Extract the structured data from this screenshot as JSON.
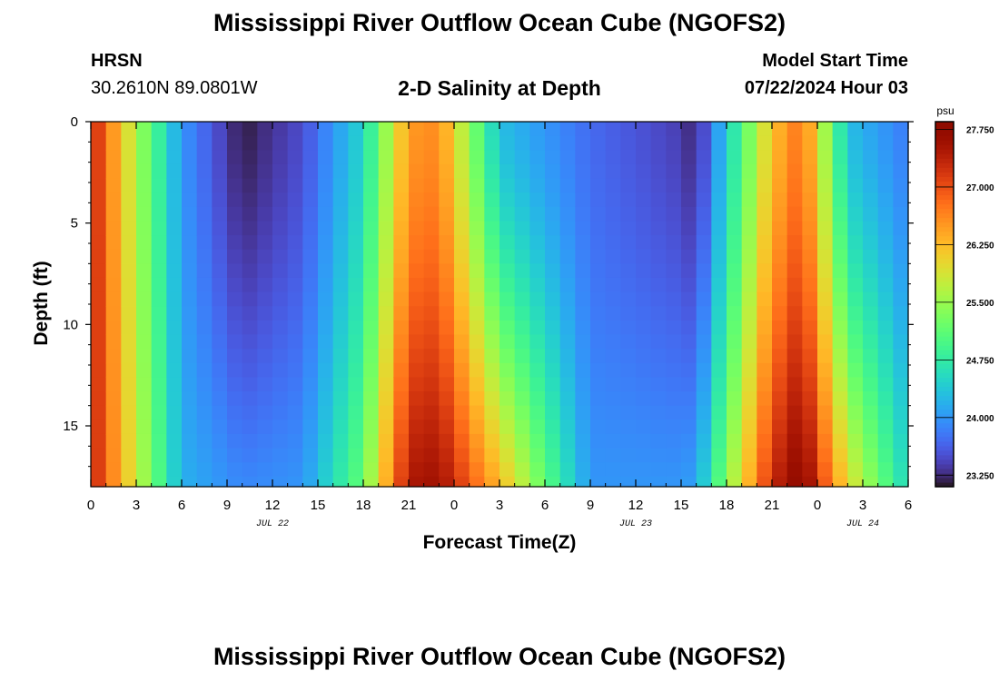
{
  "header": {
    "title_top": "Mississippi River Outflow Ocean Cube (NGOFS2)",
    "title_bottom": "Mississippi River Outflow Ocean Cube (NGOFS2)",
    "station": "HRSN",
    "coords": "30.2610N  89.0801W",
    "subtitle": "2-D Salinity at Depth",
    "model_start_label": "Model Start Time",
    "model_start_value": "07/22/2024 Hour 03"
  },
  "chart_data": {
    "type": "heatmap",
    "xlabel": "Forecast Time(Z)",
    "ylabel": "Depth (ft)",
    "x_ticks": [
      "0",
      "3",
      "6",
      "9",
      "12",
      "15",
      "18",
      "21",
      "0",
      "3",
      "6",
      "9",
      "12",
      "15",
      "18",
      "21",
      "0",
      "3",
      "6"
    ],
    "x_range_hours": [
      0,
      54
    ],
    "date_labels": [
      {
        "label": "JUL 22",
        "hour": 12
      },
      {
        "label": "JUL 23",
        "hour": 36
      },
      {
        "label": "JUL 24",
        "hour": 51
      }
    ],
    "y_ticks": [
      0,
      5,
      10,
      15
    ],
    "y_range_ft": [
      0,
      18
    ],
    "y_inverted": true,
    "colorbar": {
      "unit": "psu",
      "min": 23.1,
      "max": 27.85,
      "tick_labels": [
        "27.750",
        "27.000",
        "26.250",
        "25.500",
        "24.750",
        "24.000",
        "23.250"
      ],
      "tick_values": [
        27.75,
        27.0,
        26.25,
        25.5,
        24.75,
        24.0,
        23.25
      ],
      "colormap": "turbo"
    },
    "field": {
      "time_step_hours": 1,
      "depth_step_ft": 0.7,
      "structure": [
        {
          "hour": 0,
          "surface": 27.4,
          "bottom": 27.4
        },
        {
          "hour": 3,
          "surface": 25.6,
          "bottom": 25.8
        },
        {
          "hour": 6,
          "surface": 24.0,
          "bottom": 24.2
        },
        {
          "hour": 10,
          "surface": 23.15,
          "bottom": 23.9
        },
        {
          "hour": 14,
          "surface": 23.5,
          "bottom": 24.0
        },
        {
          "hour": 18,
          "surface": 24.5,
          "bottom": 25.2
        },
        {
          "hour": 21,
          "surface": 26.5,
          "bottom": 27.5
        },
        {
          "hour": 23,
          "surface": 26.6,
          "bottom": 27.6
        },
        {
          "hour": 27,
          "surface": 24.3,
          "bottom": 26.3
        },
        {
          "hour": 33,
          "surface": 23.7,
          "bottom": 24.0
        },
        {
          "hour": 39,
          "surface": 23.4,
          "bottom": 24.0
        },
        {
          "hour": 40,
          "surface": 23.2,
          "bottom": 24.1
        },
        {
          "hour": 45,
          "surface": 26.2,
          "bottom": 27.3
        },
        {
          "hour": 47,
          "surface": 26.8,
          "bottom": 27.85
        },
        {
          "hour": 50,
          "surface": 24.3,
          "bottom": 26.0
        },
        {
          "hour": 54,
          "surface": 23.8,
          "bottom": 24.5
        }
      ]
    }
  }
}
